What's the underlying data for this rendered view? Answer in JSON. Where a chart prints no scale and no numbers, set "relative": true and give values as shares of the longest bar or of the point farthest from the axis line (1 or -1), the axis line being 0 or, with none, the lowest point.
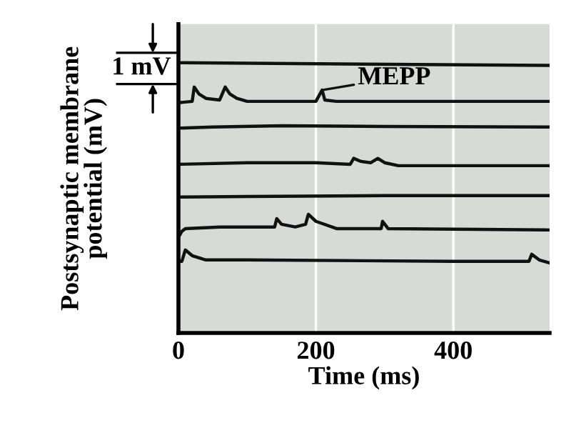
{
  "chart_data": {
    "type": "line",
    "relative": true,
    "xlabel": "Time (ms)",
    "ylabel": "Postsynaptic membrane\npotential (mV)",
    "xlim": [
      0,
      540
    ],
    "xticks": [
      0,
      200,
      400
    ],
    "grid": "x",
    "marker": "none",
    "line_style": "solid",
    "annotations": [
      "1 mV",
      {
        "text": "MEPP",
        "x": 209,
        "y": 0.899
      }
    ],
    "series": [
      {
        "color": "#111111",
        "x": [
          0,
          540
        ],
        "values": [
          1.0,
          0.99
        ]
      },
      {
        "color": "#111111",
        "x": [
          0,
          20,
          23,
          30,
          40,
          60,
          68,
          75,
          85,
          100,
          200,
          209,
          213,
          230,
          540
        ],
        "values": [
          0.852,
          0.857,
          0.91,
          0.884,
          0.868,
          0.862,
          0.91,
          0.884,
          0.868,
          0.857,
          0.857,
          0.899,
          0.862,
          0.857,
          0.857
        ]
      },
      {
        "color": "#111111",
        "x": [
          0,
          50,
          150,
          300,
          540
        ],
        "values": [
          0.758,
          0.762,
          0.767,
          0.764,
          0.762
        ]
      },
      {
        "color": "#111111",
        "x": [
          0,
          100,
          200,
          250,
          255,
          265,
          280,
          290,
          300,
          320,
          540
        ],
        "values": [
          0.624,
          0.63,
          0.63,
          0.624,
          0.646,
          0.635,
          0.63,
          0.646,
          0.63,
          0.619,
          0.619
        ]
      },
      {
        "color": "#111111",
        "x": [
          0,
          100,
          300,
          540
        ],
        "values": [
          0.503,
          0.505,
          0.508,
          0.508
        ]
      },
      {
        "color": "#111111",
        "x": [
          0,
          5,
          10,
          60,
          140,
          143,
          150,
          170,
          185,
          189,
          200,
          230,
          295,
          297,
          305,
          540
        ],
        "values": [
          0.354,
          0.376,
          0.386,
          0.392,
          0.392,
          0.423,
          0.402,
          0.392,
          0.402,
          0.439,
          0.413,
          0.386,
          0.386,
          0.413,
          0.386,
          0.381
        ]
      },
      {
        "color": "#111111",
        "x": [
          0,
          5,
          10,
          20,
          40,
          100,
          400,
          510,
          514,
          525,
          540
        ],
        "values": [
          0.265,
          0.265,
          0.307,
          0.286,
          0.27,
          0.27,
          0.265,
          0.265,
          0.291,
          0.27,
          0.259
        ]
      }
    ]
  }
}
